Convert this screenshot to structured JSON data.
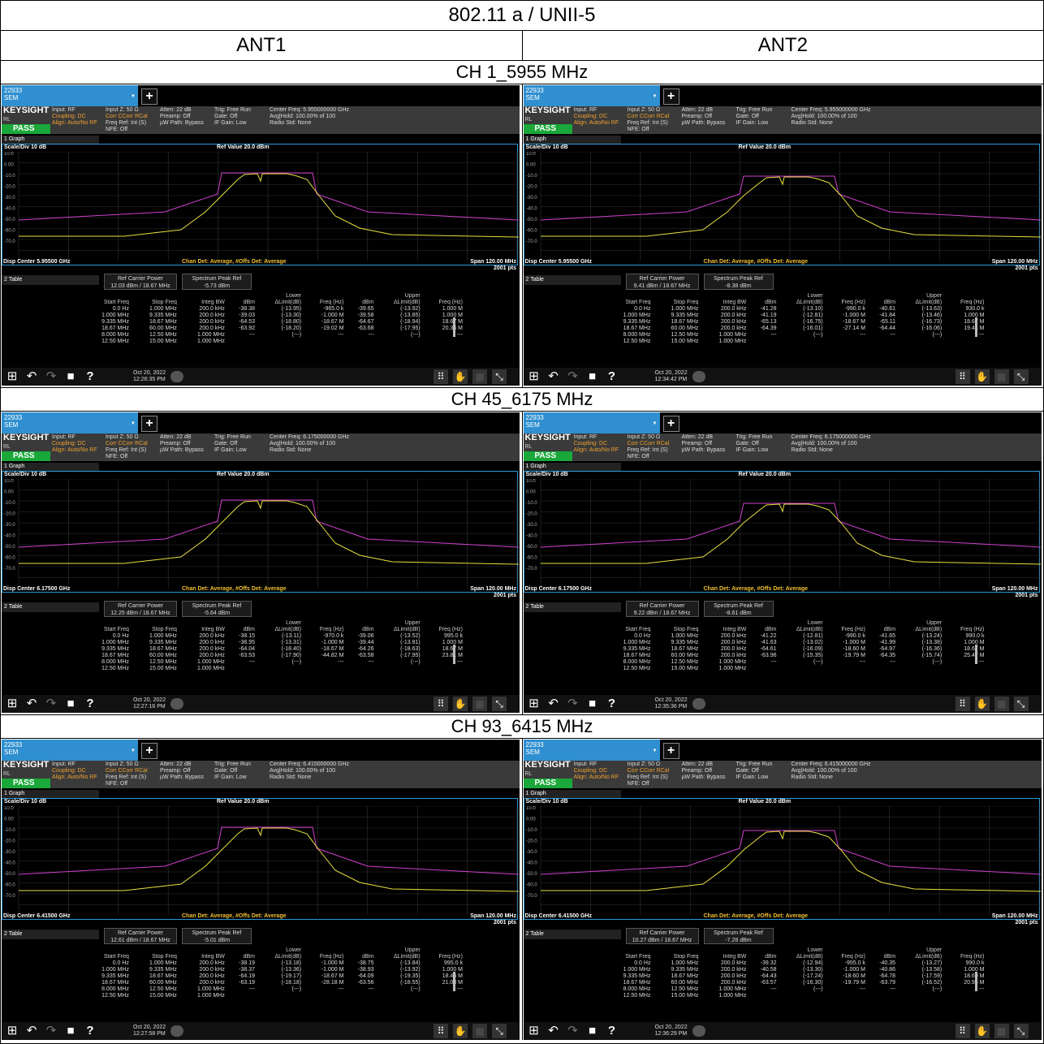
{
  "title": "802.11 a / UNII-5",
  "antennas": [
    "ANT1",
    "ANT2"
  ],
  "common": {
    "tab_line1": "22933",
    "tab_line2": "SEM",
    "brand": "KEYSIGHT",
    "rl": "RL",
    "pass": "PASS",
    "input_rf": "Input: RF",
    "coupling": "Coupling: DC",
    "align": "Align: Auto/No RF",
    "inputz": "Input Z: 50 Ω",
    "corr": "Corr CCorr RCal",
    "freqref": "Freq Ref: Int (S)",
    "nfe": "NFE: Off",
    "atten": "Atten: 22 dB",
    "preamp": "Preamp: Off",
    "uw": "µW Path: Bypass",
    "trig": "Trig: Free Run",
    "gate": "Gate: Off",
    "ifgain": "IF Gain: Low",
    "avg": "Avg|Hold: 100.00% of 100",
    "radio": "Radio Std: None",
    "graph_sel": "1 Graph",
    "scale": "Scale/Div 10 dB",
    "log": "Log",
    "refval": "Ref Value 20.0 dBm",
    "det": "Chan Det: Average, #Offs Det: Average",
    "span": "Span 120.00 MHz",
    "pts": "2001 pts",
    "table_sel": "2 Table",
    "btn_ref": "Ref Carrier Power",
    "btn_peak": "Spectrum Peak Ref",
    "y_ticks": [
      "10.0",
      "0.00",
      "-10.0",
      "-20.0",
      "-30.0",
      "-40.0",
      "-50.0",
      "-60.0",
      "-70.0"
    ],
    "col_lower": "Lower",
    "col_upper": "Upper",
    "headers": [
      "Start Freq",
      "Stop Freq",
      "Integ BW",
      "dBm",
      "ΔLimit(dB)",
      "Freq (Hz)",
      "dBm",
      "ΔLimit(dB)",
      "Freq (Hz)"
    ],
    "start": [
      "0.0 Hz",
      "1.000 MHz",
      "9.335 MHz",
      "18.67 MHz",
      "8.000 MHz",
      "12.50 MHz"
    ],
    "stop": [
      "1.000 MHz",
      "9.335 MHz",
      "18.67 MHz",
      "60.00 MHz",
      "12.50 MHz",
      "15.00 MHz"
    ],
    "bw": [
      "200.0 kHz",
      "200.0 kHz",
      "200.0 kHz",
      "200.0 kHz",
      "1.000 MHz",
      "1.000 MHz"
    ]
  },
  "channels": [
    {
      "label": "CH 1_5955 MHz",
      "center_freq": "Center Freq: 5.955000000 GHz",
      "disp_center": "Disp Center 5.95500 GHz",
      "shots": [
        {
          "ref": "12.03 dBm / 18.67 MHz",
          "peak": "-5.73 dBm",
          "date": "Oct 20, 2022",
          "time": "12:26:35 PM",
          "rows": [
            [
              "-38.38",
              "(-13.95)",
              "-965.0 k",
              "-39.65",
              "(-13.92)",
              "1.000 M"
            ],
            [
              "-39.03",
              "(-13.30)",
              "-1.000 M",
              "-39.58",
              "(-13.85)",
              "1.000 M"
            ],
            [
              "-64.53",
              "(-18.80)",
              "-18.67 M",
              "-64.67",
              "(-18.94)",
              "18.67 M"
            ],
            [
              "-63.92",
              "(-18.20)",
              "-19.02 M",
              "-63.68",
              "(-17.95)",
              "20.34 M"
            ],
            [
              "---",
              "(---)",
              "---",
              "---",
              "(---)",
              "---"
            ]
          ]
        },
        {
          "ref": "9.41 dBm / 18.67 MHz",
          "peak": "-8.38 dBm",
          "date": "Oct 20, 2022",
          "time": "12:34:42 PM",
          "rows": [
            [
              "-41.28",
              "(-13.10)",
              "-990.0 k",
              "-40.61",
              "(-13.63)",
              "930.0 k"
            ],
            [
              "-41.19",
              "(-12.81)",
              "-1.000 M",
              "-41.84",
              "(-13.46)",
              "1.000 M"
            ],
            [
              "-65.13",
              "(-16.75)",
              "-18.67 M",
              "-65.11",
              "(-16.73)",
              "18.67 M"
            ],
            [
              "-64.39",
              "(-16.01)",
              "-27.14 M",
              "-64.44",
              "(-16.06)",
              "19.44 M"
            ],
            [
              "---",
              "(---)",
              "---",
              "---",
              "(---)",
              "---"
            ]
          ]
        }
      ]
    },
    {
      "label": "CH 45_6175 MHz",
      "center_freq": "Center Freq: 6.175000000 GHz",
      "disp_center": "Disp Center 6.17500 GHz",
      "shots": [
        {
          "ref": "12.25 dBm / 18.67 MHz",
          "peak": "-5.64 dBm",
          "date": "Oct 20, 2022",
          "time": "12:27:16 PM",
          "rows": [
            [
              "-38.15",
              "(-13.11)",
              "-970.0 k",
              "-39.06",
              "(-13.52)",
              "995.0 k"
            ],
            [
              "-38.95",
              "(-13.31)",
              "-1.000 M",
              "-39.44",
              "(-13.81)",
              "1.000 M"
            ],
            [
              "-64.04",
              "(-18.40)",
              "-18.67 M",
              "-64.26",
              "(-18.63)",
              "18.67 M"
            ],
            [
              "-63.53",
              "(-17.90)",
              "-44.82 M",
              "-63.58",
              "(-17.95)",
              "23.81 M"
            ],
            [
              "---",
              "(---)",
              "---",
              "---",
              "(---)",
              "---"
            ]
          ]
        },
        {
          "ref": "9.22 dBm / 18.67 MHz",
          "peak": "-8.61 dBm",
          "date": "Oct 20, 2022",
          "time": "12:35:36 PM",
          "rows": [
            [
              "-41.22",
              "(-12.81)",
              "-990.0 k",
              "-41.65",
              "(-13.24)",
              "990.0 k"
            ],
            [
              "-41.63",
              "(-13.02)",
              "-1.000 M",
              "-41.99",
              "(-13.38)",
              "1.000 M"
            ],
            [
              "-64.61",
              "(-16.09)",
              "-18.60 M",
              "-64.97",
              "(-16.36)",
              "18.67 M"
            ],
            [
              "-63.96",
              "(-15.35)",
              "-19.79 M",
              "-64.35",
              "(-15.74)",
              "25.47 M"
            ],
            [
              "---",
              "(---)",
              "---",
              "---",
              "(---)",
              "---"
            ]
          ]
        }
      ]
    },
    {
      "label": "CH 93_6415 MHz",
      "center_freq": "Center Freq: 6.415000000 GHz",
      "disp_center": "Disp Center 6.41500 GHz",
      "shots": [
        {
          "ref": "12.61 dBm / 18.67 MHz",
          "peak": "-5.01 dBm",
          "date": "Oct 20, 2022",
          "time": "12:27:58 PM",
          "rows": [
            [
              "-38.19",
              "(-13.18)",
              "-1.000 M",
              "-38.75",
              "(-13.84)",
              "995.0 k"
            ],
            [
              "-38.37",
              "(-13.36)",
              "-1.000 M",
              "-38.93",
              "(-13.92)",
              "1.000 M"
            ],
            [
              "-64.19",
              "(-19.17)",
              "-18.67 M",
              "-64.09",
              "(-19.35)",
              "18.46 M"
            ],
            [
              "-63.19",
              "(-18.18)",
              "-28.18 M",
              "-63.56",
              "(-18.55)",
              "21.03 M"
            ],
            [
              "---",
              "(---)",
              "---",
              "---",
              "(---)",
              "---"
            ]
          ]
        },
        {
          "ref": "10.27 dBm / 18.67 MHz",
          "peak": "-7.28 dBm",
          "date": "Oct 20, 2022",
          "time": "12:36:29 PM",
          "rows": [
            [
              "-39.32",
              "(-12.94)",
              "-955.0 k",
              "-40.35",
              "(-13.27)",
              "990.0 k"
            ],
            [
              "-40.58",
              "(-13.30)",
              "-1.000 M",
              "-40.86",
              "(-13.58)",
              "1.000 M"
            ],
            [
              "-64.43",
              "(-17.24)",
              "-18.60 M",
              "-64.78",
              "(-17.59)",
              "18.60 M"
            ],
            [
              "-63.57",
              "(-16.30)",
              "-19.79 M",
              "-63.79",
              "(-16.52)",
              "20.96 M"
            ],
            [
              "---",
              "(---)",
              "---",
              "---",
              "(---)",
              "---"
            ]
          ]
        }
      ]
    }
  ]
}
